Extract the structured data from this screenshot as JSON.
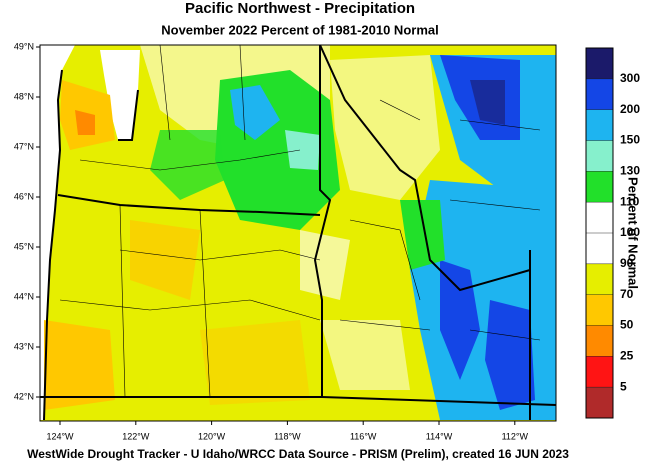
{
  "title": "Pacific Northwest - Precipitation",
  "subtitle": "November 2022  Percent of 1981-2010 Normal",
  "lat_labels": [
    "49°N",
    "48°N",
    "47°N",
    "46°N",
    "45°N",
    "44°N",
    "43°N",
    "42°N"
  ],
  "lon_labels": [
    "124°W",
    "122°W",
    "120°W",
    "118°W",
    "116°W",
    "114°W",
    "112°W"
  ],
  "legend": {
    "title": "Percent of Normal",
    "labels": [
      "300",
      "200",
      "150",
      "130",
      "110",
      "100",
      "90",
      "70",
      "50",
      "25",
      "5"
    ],
    "colors": [
      "#1b1a6a",
      "#1446e6",
      "#1eb4f0",
      "#86f0cc",
      "#22e02a",
      "#ffffff",
      "#ffffff",
      "#e6ee00",
      "#ffc800",
      "#ff8a00",
      "#ff1414",
      "#b02a2a"
    ]
  },
  "footer": "WestWide Drought Tracker - U Idaho/WRCC  Data Source - PRISM (Prelim), created 16 JUN 2023"
}
